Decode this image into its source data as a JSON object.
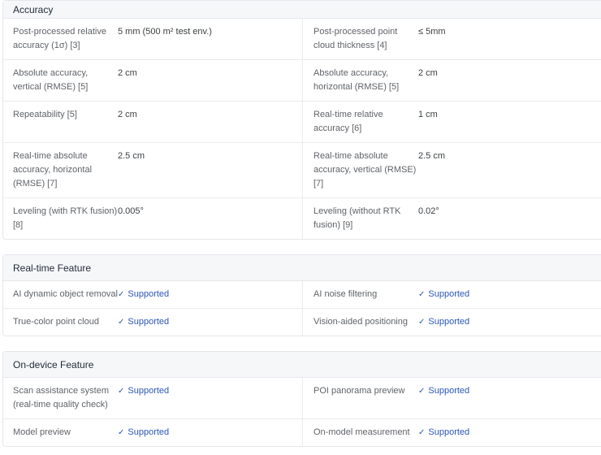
{
  "sections": [
    {
      "title": "Accuracy",
      "rows": [
        [
          {
            "label": "Post-processed relative accuracy (1σ) [3]",
            "value": "5 mm (500 m² test env.)"
          },
          {
            "label": "Post-processed point cloud thickness [4]",
            "value": "≤ 5mm"
          }
        ],
        [
          {
            "label": "Absolute accuracy, vertical (RMSE) [5]",
            "value": "2 cm"
          },
          {
            "label": "Absolute accuracy, horizontal (RMSE) [5]",
            "value": "2 cm"
          }
        ],
        [
          {
            "label": "Repeatability [5]",
            "value": "2 cm"
          },
          {
            "label": "Real-time relative accuracy [6]",
            "value": "1 cm"
          }
        ],
        [
          {
            "label": "Real-time absolute accuracy, horizontal (RMSE) [7]",
            "value": "2.5 cm"
          },
          {
            "label": "Real-time absolute accuracy, vertical (RMSE) [7]",
            "value": "2.5 cm"
          }
        ],
        [
          {
            "label": "Leveling (with RTK fusion) [8]",
            "value": "0.005°"
          },
          {
            "label": "Leveling (without RTK fusion) [9]",
            "value": "0.02°"
          }
        ]
      ]
    },
    {
      "title": "Real-time Feature",
      "rows": [
        [
          {
            "label": "AI dynamic object removal",
            "value": "Supported"
          },
          {
            "label": "AI noise filtering",
            "value": "Supported"
          }
        ],
        [
          {
            "label": "True-color point cloud",
            "value": "Supported"
          },
          {
            "label": "Vision-aided positioning",
            "value": "Supported"
          }
        ]
      ]
    },
    {
      "title": "On-device Feature",
      "rows": [
        [
          {
            "label": "Scan assistance system (real-time quality check)",
            "value": "Supported"
          },
          {
            "label": "POI panorama preview",
            "value": "Supported"
          }
        ],
        [
          {
            "label": "Model preview",
            "value": "Supported"
          },
          {
            "label": "On-model measurement",
            "value": "Supported"
          }
        ]
      ]
    }
  ],
  "check_glyph": "✓",
  "colors": {
    "supported": "#2b57b8",
    "header_bg": "#f6f7f9"
  }
}
